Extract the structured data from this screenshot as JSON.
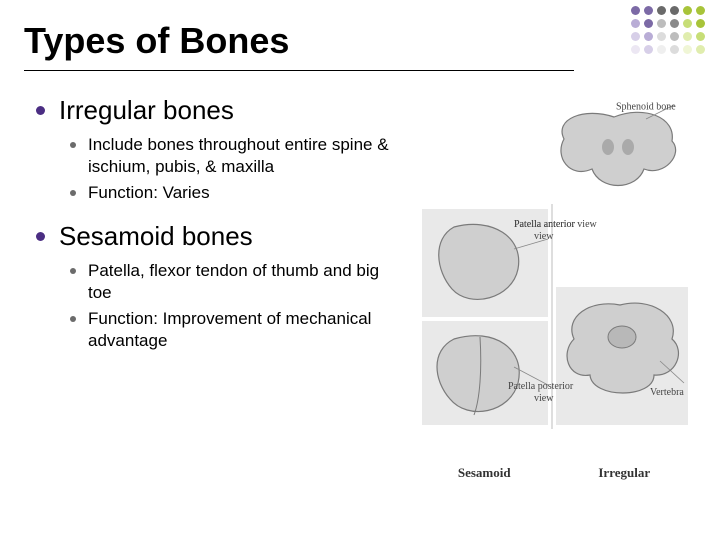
{
  "title": "Types of Bones",
  "decoration_dots": {
    "cols": 6,
    "rows": [
      [
        "#7c6aa6",
        "#7c6aa6",
        "#6a6a6a",
        "#6a6a6a",
        "#a8c43a",
        "#a8c43a"
      ],
      [
        "#b9add6",
        "#7c6aa6",
        "#bdbdbd",
        "#8a8a8a",
        "#c7de77",
        "#a8c43a"
      ],
      [
        "#d7cfe8",
        "#b9add6",
        "#dcdcdc",
        "#bdbdbd",
        "#e0edae",
        "#c7de77"
      ],
      [
        "#ece7f3",
        "#d7cfe8",
        "#efefef",
        "#dcdcdc",
        "#f0f6d6",
        "#e0edae"
      ]
    ]
  },
  "bullets": [
    {
      "label": "Irregular bones",
      "sub": [
        "Include bones throughout entire spine & ischium, pubis, & maxilla",
        "Function: Varies"
      ]
    },
    {
      "label": "Sesamoid bones",
      "sub": [
        "Patella, flexor tendon of thumb and big toe",
        "Function: Improvement of mechanical advantage"
      ]
    }
  ],
  "figure": {
    "labels": {
      "sphenoid": "Sphenoid bone",
      "patella_ant": "Patella anterior view",
      "patella_post": "Patella posterior view",
      "vertebra": "Vertebra"
    },
    "captions": {
      "left": "Sesamoid",
      "right": "Irregular"
    },
    "colors": {
      "panel_bg": "#e9e9e9",
      "bone_fill": "#cfcfcf",
      "bone_stroke": "#7a7a7a",
      "divider": "#bcbcbc",
      "leader": "#888888"
    }
  },
  "style": {
    "title_fontsize": 36,
    "h1_fontsize": 26,
    "h2_fontsize": 17,
    "bullet_l1_color": "#4b2e83",
    "bullet_l2_color": "#6b6b6b",
    "rule_color": "#000000",
    "background": "#ffffff"
  }
}
